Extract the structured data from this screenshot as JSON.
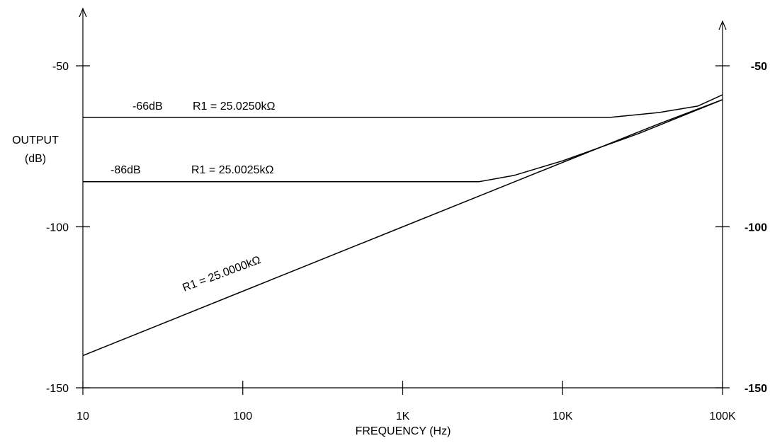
{
  "chart_data": {
    "type": "line",
    "xlabel": "FREQUENCY (Hz)",
    "ylabel": [
      "OUTPUT",
      "(dB)"
    ],
    "x_scale": "log",
    "xlim": [
      10,
      100000
    ],
    "ylim": [
      -150,
      -30
    ],
    "x_ticks": [
      10,
      100,
      1000,
      10000,
      100000
    ],
    "x_tick_labels": [
      "10",
      "100",
      "1K",
      "10K",
      "100K"
    ],
    "y_ticks": [
      -50,
      -100,
      -150
    ],
    "y_tick_labels": [
      "-50",
      "-100",
      "-150"
    ],
    "y_tick_labels_right": [
      "-50",
      "-100",
      "-150"
    ],
    "grid": false,
    "series": [
      {
        "name": "R1 = 25.0250kΩ",
        "level_label": "-66dB",
        "x": [
          10,
          100,
          1000,
          10000,
          20000,
          40000,
          70000,
          100000
        ],
        "y": [
          -66,
          -66,
          -66,
          -66,
          -66,
          -64.5,
          -62.5,
          -59
        ]
      },
      {
        "name": "R1 = 25.0025kΩ",
        "level_label": "-86dB",
        "x": [
          10,
          100,
          1000,
          3000,
          5000,
          10000,
          30000,
          100000
        ],
        "y": [
          -86,
          -86,
          -86,
          -86,
          -84,
          -79.5,
          -71,
          -60.5
        ]
      },
      {
        "name": "R1 = 25.0000kΩ",
        "x": [
          10,
          100,
          1000,
          10000,
          40000,
          100000
        ],
        "y": [
          -140,
          -120,
          -100,
          -80,
          -68,
          -60.5
        ]
      }
    ]
  }
}
